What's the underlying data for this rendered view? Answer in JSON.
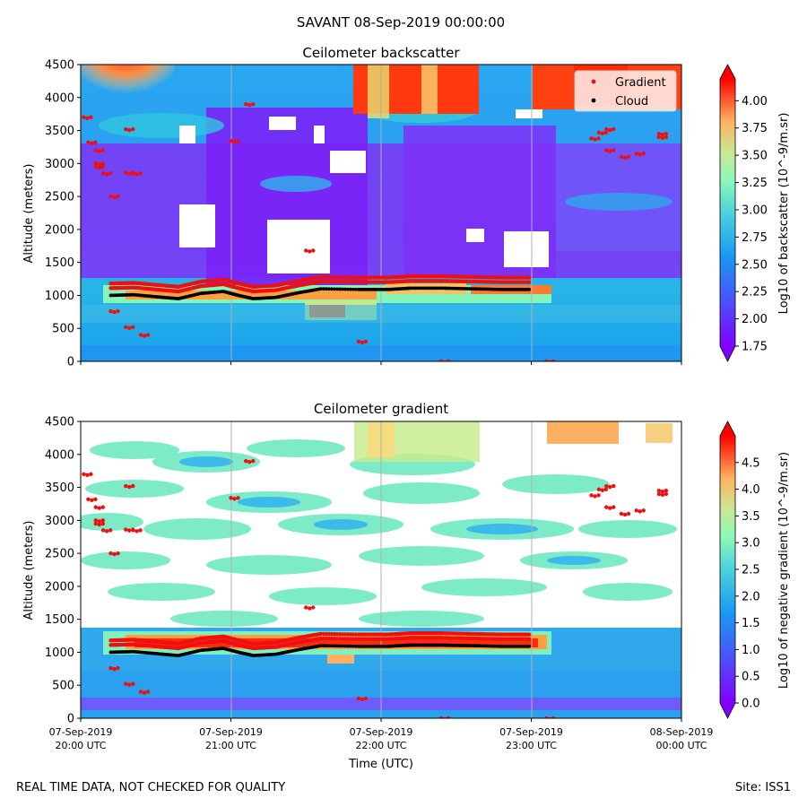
{
  "suptitle": "SAVANT 08-Sep-2019 00:00:00",
  "footer_left": "REAL TIME DATA, NOT CHECKED FOR QUALITY",
  "footer_right": "Site: ISS1",
  "chart_data": [
    {
      "type": "heatmap",
      "title": "Ceilometer backscatter",
      "ylabel": "Altitude (meters)",
      "ylim": [
        0,
        4500
      ],
      "yticks": [
        0,
        500,
        1000,
        1500,
        2000,
        2500,
        3000,
        3500,
        4000,
        4500
      ],
      "x_range": [
        "07-Sep-2019 20:00 UTC",
        "08-Sep-2019 00:00 UTC"
      ],
      "grid": "vertical lines at hourly ticks",
      "legend_position": "top-right",
      "legend": [
        "Gradient",
        "Cloud"
      ],
      "colorbar": {
        "label": "Log10 of backscatter (10^-9/m.sr)",
        "range": [
          1.75,
          4.2
        ],
        "ticks": [
          "1.75",
          "2.00",
          "2.25",
          "2.50",
          "2.75",
          "3.00",
          "3.25",
          "3.50",
          "3.75",
          "4.00"
        ],
        "colormap": "rainbow",
        "extend": "both"
      },
      "cloud_base": {
        "times_hours_after_2000": [
          0.2,
          0.35,
          0.5,
          0.65,
          0.8,
          0.95,
          1.05,
          1.15,
          1.3,
          1.45,
          1.6,
          1.85,
          2.05,
          2.2,
          2.4,
          2.6,
          2.8,
          3.0
        ],
        "altitude_m": [
          1000,
          1010,
          980,
          950,
          1030,
          1060,
          1000,
          950,
          970,
          1040,
          1100,
          1090,
          1090,
          1110,
          1110,
          1100,
          1090,
          1090
        ]
      },
      "gradient_points": {
        "times_hours_after_2000": [
          0.02,
          0.05,
          0.1,
          0.1,
          0.15,
          0.2,
          0.3,
          0.35,
          0.4,
          0.3,
          0.2,
          1.5,
          1.85,
          2.4,
          3.1,
          3.45,
          3.5,
          3.7,
          3.85,
          3.85,
          3.4,
          3.5,
          3.6,
          0.1,
          0.3,
          1.0,
          1.1
        ],
        "altitude_m": [
          3700,
          3320,
          3200,
          2950,
          2850,
          2500,
          3520,
          2850,
          400,
          520,
          760,
          1680,
          300,
          0,
          0,
          3470,
          3200,
          3150,
          3400,
          3450,
          3380,
          3520,
          3100,
          3000,
          2860,
          3340,
          3900
        ]
      }
    },
    {
      "type": "heatmap",
      "title": "Ceilometer gradient",
      "xlabel": "Time (UTC)",
      "ylabel": "Altitude (meters)",
      "ylim": [
        0,
        4500
      ],
      "yticks": [
        0,
        500,
        1000,
        1500,
        2000,
        2500,
        3000,
        3500,
        4000,
        4500
      ],
      "xticks": [
        {
          "l1": "07-Sep-2019",
          "l2": "20:00 UTC"
        },
        {
          "l1": "07-Sep-2019",
          "l2": "21:00 UTC"
        },
        {
          "l1": "07-Sep-2019",
          "l2": "22:00 UTC"
        },
        {
          "l1": "07-Sep-2019",
          "l2": "23:00 UTC"
        },
        {
          "l1": "08-Sep-2019",
          "l2": "00:00 UTC"
        }
      ],
      "grid": "vertical lines at hourly ticks",
      "colorbar": {
        "label": "Log10 of negative gradient (10^-9/m.sr)",
        "range": [
          0,
          5.0
        ],
        "ticks": [
          "0.0",
          "0.5",
          "1.0",
          "1.5",
          "2.0",
          "2.5",
          "3.0",
          "3.5",
          "4.0",
          "4.5"
        ],
        "colormap": "rainbow",
        "extend": "both"
      }
    }
  ]
}
